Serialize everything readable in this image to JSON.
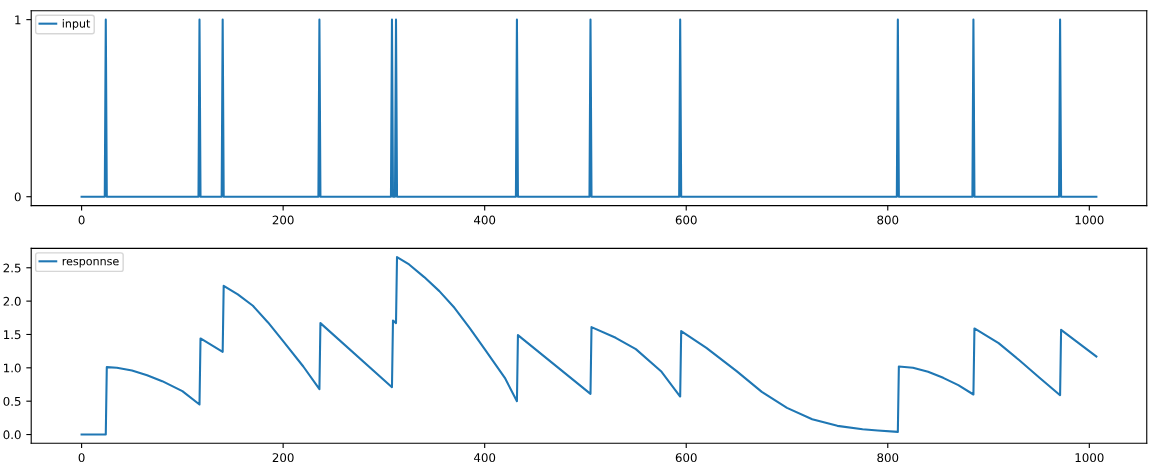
{
  "chart_data": [
    {
      "type": "line",
      "legend": "upper left",
      "grid": false,
      "xlim": [
        -50,
        1057
      ],
      "ylim": [
        -0.05,
        1.05
      ],
      "xticks": [
        0,
        200,
        400,
        600,
        800,
        1000
      ],
      "yticks": [
        0,
        1
      ],
      "series": [
        {
          "name": "input",
          "color": "#1f77b4",
          "x": [
            0,
            23,
            24,
            25,
            116,
            117,
            118,
            139,
            140,
            141,
            235,
            236,
            237,
            307,
            308,
            309,
            311,
            312,
            313,
            431,
            432,
            433,
            504,
            505,
            506,
            593,
            594,
            595,
            809,
            810,
            811,
            884,
            885,
            886,
            970,
            971,
            972,
            1007
          ],
          "values": [
            0,
            0,
            1,
            0,
            0,
            1,
            0,
            0,
            1,
            0,
            0,
            1,
            0,
            0,
            1,
            0,
            0,
            1,
            0,
            0,
            1,
            0,
            0,
            1,
            0,
            0,
            1,
            0,
            0,
            1,
            0,
            0,
            1,
            0,
            0,
            1,
            0,
            0
          ]
        }
      ]
    },
    {
      "type": "line",
      "legend": "upper left",
      "grid": false,
      "xlim": [
        -50,
        1057
      ],
      "ylim": [
        -0.13,
        2.79
      ],
      "xticks": [
        0,
        200,
        400,
        600,
        800,
        1000
      ],
      "yticks": [
        {
          "value": 0,
          "label": "0.0"
        },
        0.5,
        {
          "value": 1,
          "label": "1.0"
        },
        1.5,
        {
          "value": 2,
          "label": "2.0"
        },
        2.5
      ],
      "series": [
        {
          "name": "responnse",
          "color": "#1f77b4",
          "x": [
            0,
            24,
            25,
            35,
            50,
            65,
            80,
            100,
            117,
            118,
            140,
            141,
            155,
            170,
            185,
            200,
            220,
            236,
            237,
            308,
            309,
            312,
            313,
            325,
            340,
            355,
            370,
            385,
            400,
            420,
            432,
            433,
            505,
            506,
            530,
            550,
            575,
            594,
            595,
            620,
            650,
            675,
            700,
            725,
            750,
            775,
            790,
            810,
            811,
            825,
            840,
            855,
            870,
            885,
            886,
            910,
            930,
            950,
            971,
            972,
            1007
          ],
          "values": [
            0,
            0,
            1.01,
            1.0,
            0.96,
            0.89,
            0.8,
            0.65,
            0.45,
            1.44,
            1.24,
            2.23,
            2.1,
            1.93,
            1.68,
            1.4,
            1.02,
            0.68,
            1.67,
            0.71,
            1.71,
            1.67,
            2.66,
            2.55,
            2.36,
            2.15,
            1.9,
            1.6,
            1.28,
            0.85,
            0.5,
            1.49,
            0.61,
            1.61,
            1.45,
            1.28,
            0.95,
            0.57,
            1.55,
            1.3,
            0.95,
            0.64,
            0.4,
            0.23,
            0.13,
            0.08,
            0.06,
            0.04,
            1.02,
            1.0,
            0.94,
            0.85,
            0.74,
            0.6,
            1.59,
            1.37,
            1.12,
            0.86,
            0.59,
            1.57,
            1.17
          ]
        }
      ]
    }
  ]
}
